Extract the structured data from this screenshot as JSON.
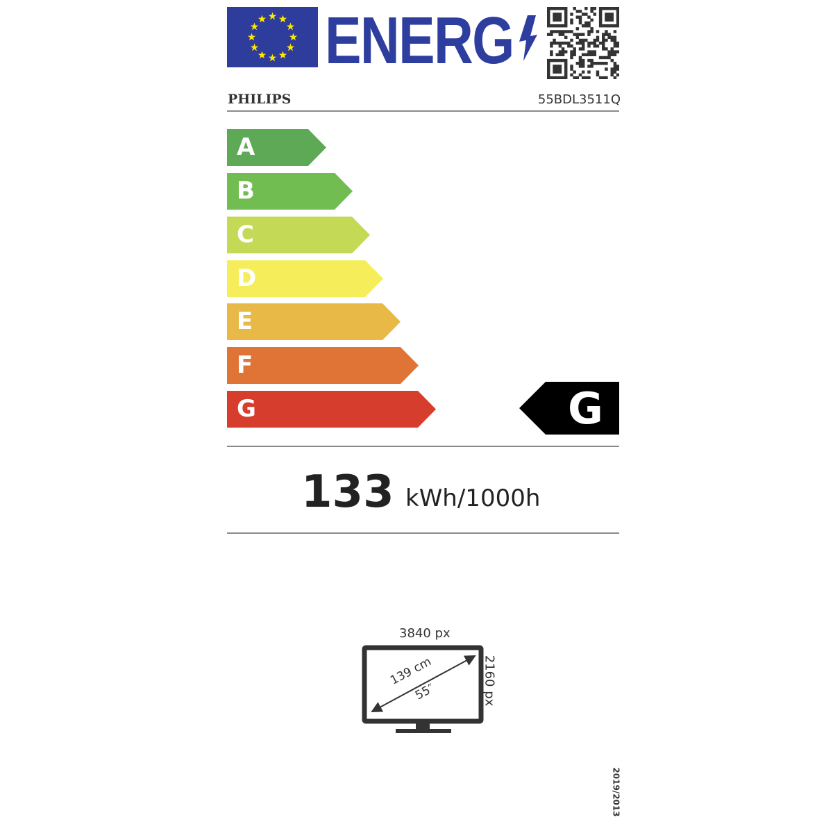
{
  "header": {
    "logo_text": "ENERG",
    "brand": "PHILIPS",
    "model": "55BDL3511Q",
    "colors": {
      "eu_blue": "#2e3c9b",
      "stars": "#ffe600"
    }
  },
  "scale": [
    {
      "label": "A",
      "color": "#5ea955"
    },
    {
      "label": "B",
      "color": "#72bd52"
    },
    {
      "label": "C",
      "color": "#c4da56"
    },
    {
      "label": "D",
      "color": "#f5ee5a"
    },
    {
      "label": "E",
      "color": "#e9b947"
    },
    {
      "label": "F",
      "color": "#df7436"
    },
    {
      "label": "G",
      "color": "#d73d2d"
    }
  ],
  "rating": {
    "class": "G"
  },
  "consumption": {
    "value": "133",
    "unit": "kWh/1000h"
  },
  "screen": {
    "h_res": "3840 px",
    "v_res": "2160 px",
    "diag_cm": "139 cm",
    "diag_in": "55″"
  },
  "regulation": "2019/2013"
}
